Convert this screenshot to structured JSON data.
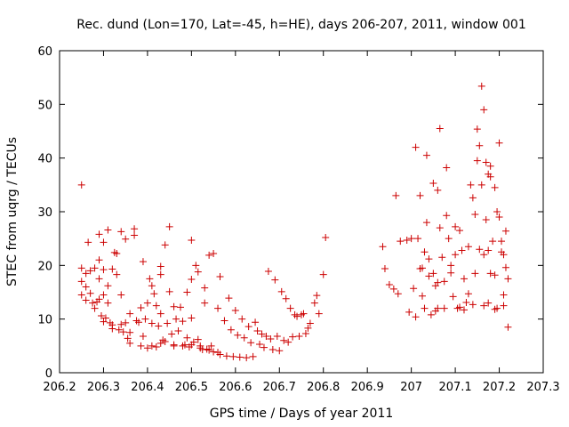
{
  "chart_data": {
    "type": "scatter",
    "title": "Rec. dund (Lon=170, Lat=-45, h=HE), days 206-207, 2011, window 001",
    "xlabel": "GPS time / Days of year 2011",
    "ylabel": "STEC from uqrg / TECUs",
    "xlim": [
      206.2,
      207.3
    ],
    "ylim": [
      0,
      60
    ],
    "xticks": [
      206.2,
      206.3,
      206.4,
      206.5,
      206.6,
      206.7,
      206.8,
      206.9,
      207,
      207.1,
      207.2,
      207.3
    ],
    "xtick_labels": [
      "206.2",
      "206.3",
      "206.4",
      "206.5",
      "206.6",
      "206.7",
      "206.8",
      "206.9",
      "207",
      "207.1",
      "207.2",
      "207.3"
    ],
    "yticks": [
      0,
      10,
      20,
      30,
      40,
      50,
      60
    ],
    "ytick_labels": [
      "0",
      "10",
      "20",
      "30",
      "40",
      "50",
      "60"
    ],
    "grid": false,
    "marker": "plus",
    "color": "#cc0000",
    "series": [
      {
        "name": "",
        "points": [
          [
            206.25,
            35.0
          ],
          [
            206.25,
            19.5
          ],
          [
            206.25,
            17.0
          ],
          [
            206.25,
            14.5
          ],
          [
            206.26,
            18.5
          ],
          [
            206.26,
            16.0
          ],
          [
            206.26,
            13.5
          ],
          [
            206.265,
            24.3
          ],
          [
            206.27,
            19.0
          ],
          [
            206.27,
            14.8
          ],
          [
            206.275,
            13.0
          ],
          [
            206.28,
            19.5
          ],
          [
            206.28,
            12.0
          ],
          [
            206.285,
            13.2
          ],
          [
            206.29,
            25.8
          ],
          [
            206.29,
            21.0
          ],
          [
            206.29,
            17.5
          ],
          [
            206.29,
            13.7
          ],
          [
            206.295,
            10.6
          ],
          [
            206.3,
            24.3
          ],
          [
            206.3,
            19.2
          ],
          [
            206.3,
            14.5
          ],
          [
            206.305,
            10.2
          ],
          [
            206.31,
            26.6
          ],
          [
            206.31,
            16.2
          ],
          [
            206.31,
            13.0
          ],
          [
            206.315,
            9.3
          ],
          [
            206.32,
            19.3
          ],
          [
            206.32,
            8.9
          ],
          [
            206.325,
            22.4
          ],
          [
            206.33,
            22.2
          ],
          [
            206.33,
            18.3
          ],
          [
            206.335,
            8.0
          ],
          [
            206.34,
            26.3
          ],
          [
            206.34,
            14.5
          ],
          [
            206.345,
            7.6
          ],
          [
            206.35,
            24.9
          ],
          [
            206.35,
            9.3
          ],
          [
            206.355,
            6.4
          ],
          [
            206.36,
            11.0
          ],
          [
            206.36,
            5.5
          ],
          [
            206.37,
            26.8
          ],
          [
            206.37,
            25.6
          ],
          [
            206.375,
            9.7
          ],
          [
            206.38,
            9.4
          ],
          [
            206.385,
            12.1
          ],
          [
            206.385,
            5.0
          ],
          [
            206.39,
            20.7
          ],
          [
            206.39,
            6.8
          ],
          [
            206.395,
            10.0
          ],
          [
            206.4,
            13.0
          ],
          [
            206.4,
            4.6
          ],
          [
            206.405,
            17.5
          ],
          [
            206.41,
            16.2
          ],
          [
            206.41,
            9.2
          ],
          [
            206.415,
            14.7
          ],
          [
            206.42,
            12.5
          ],
          [
            206.42,
            4.8
          ],
          [
            206.425,
            8.7
          ],
          [
            206.43,
            19.8
          ],
          [
            206.43,
            18.3
          ],
          [
            206.43,
            11.0
          ],
          [
            206.435,
            6.1
          ],
          [
            206.44,
            23.8
          ],
          [
            206.44,
            5.8
          ],
          [
            206.445,
            9.2
          ],
          [
            206.45,
            27.2
          ],
          [
            206.45,
            15.1
          ],
          [
            206.455,
            7.2
          ],
          [
            206.46,
            12.3
          ],
          [
            206.46,
            5.0
          ],
          [
            206.465,
            10.0
          ],
          [
            206.47,
            7.8
          ],
          [
            206.475,
            12.2
          ],
          [
            206.48,
            9.6
          ],
          [
            206.485,
            5.2
          ],
          [
            206.49,
            15.0
          ],
          [
            206.49,
            6.5
          ],
          [
            206.495,
            4.8
          ],
          [
            206.5,
            24.7
          ],
          [
            206.5,
            17.4
          ],
          [
            206.5,
            10.2
          ],
          [
            206.505,
            5.7
          ],
          [
            206.51,
            20.0
          ],
          [
            206.515,
            18.8
          ],
          [
            206.515,
            6.2
          ],
          [
            206.52,
            4.6
          ],
          [
            206.525,
            4.3
          ],
          [
            206.53,
            15.8
          ],
          [
            206.53,
            13.0
          ],
          [
            206.535,
            4.4
          ],
          [
            206.54,
            21.9
          ],
          [
            206.545,
            5.0
          ],
          [
            206.55,
            22.2
          ],
          [
            206.55,
            3.9
          ],
          [
            206.56,
            12.0
          ],
          [
            206.565,
            17.9
          ],
          [
            206.565,
            3.4
          ],
          [
            206.575,
            9.7
          ],
          [
            206.58,
            3.1
          ],
          [
            206.585,
            13.9
          ],
          [
            206.59,
            8.0
          ],
          [
            206.595,
            3.0
          ],
          [
            206.6,
            11.6
          ],
          [
            206.605,
            7.0
          ],
          [
            206.61,
            2.9
          ],
          [
            206.615,
            10.0
          ],
          [
            206.62,
            6.5
          ],
          [
            206.625,
            2.8
          ],
          [
            206.63,
            8.6
          ],
          [
            206.635,
            5.6
          ],
          [
            206.64,
            3.0
          ],
          [
            206.645,
            9.4
          ],
          [
            206.65,
            7.8
          ],
          [
            206.655,
            5.3
          ],
          [
            206.66,
            7.2
          ],
          [
            206.665,
            4.7
          ],
          [
            206.67,
            6.8
          ],
          [
            206.675,
            18.9
          ],
          [
            206.68,
            6.3
          ],
          [
            206.685,
            4.3
          ],
          [
            206.69,
            17.3
          ],
          [
            206.695,
            6.8
          ],
          [
            206.7,
            4.1
          ],
          [
            206.705,
            15.1
          ],
          [
            206.71,
            6.0
          ],
          [
            206.715,
            13.8
          ],
          [
            206.72,
            5.7
          ],
          [
            206.725,
            12.0
          ],
          [
            206.73,
            6.7
          ],
          [
            206.735,
            10.8
          ],
          [
            206.74,
            10.5
          ],
          [
            206.745,
            6.8
          ],
          [
            206.75,
            10.8
          ],
          [
            206.755,
            11.0
          ],
          [
            206.76,
            7.3
          ],
          [
            206.765,
            8.3
          ],
          [
            206.77,
            9.2
          ],
          [
            206.78,
            13.0
          ],
          [
            206.785,
            14.4
          ],
          [
            206.79,
            11.0
          ],
          [
            206.8,
            18.3
          ],
          [
            206.805,
            25.2
          ],
          [
            206.935,
            23.5
          ],
          [
            206.94,
            19.4
          ],
          [
            206.95,
            16.4
          ],
          [
            206.96,
            15.6
          ],
          [
            206.965,
            33.0
          ],
          [
            206.97,
            14.7
          ],
          [
            206.975,
            24.5
          ],
          [
            206.99,
            24.7
          ],
          [
            206.995,
            11.3
          ],
          [
            207.0,
            25.0
          ],
          [
            207.005,
            15.7
          ],
          [
            207.01,
            42.0
          ],
          [
            207.01,
            10.4
          ],
          [
            207.015,
            25.0
          ],
          [
            207.02,
            33.0
          ],
          [
            207.02,
            19.4
          ],
          [
            207.025,
            14.3
          ],
          [
            207.03,
            22.5
          ],
          [
            207.03,
            12.0
          ],
          [
            207.035,
            40.5
          ],
          [
            207.035,
            28.0
          ],
          [
            207.04,
            21.2
          ],
          [
            207.045,
            10.8
          ],
          [
            207.05,
            35.3
          ],
          [
            207.05,
            18.5
          ],
          [
            207.055,
            16.2
          ],
          [
            207.06,
            34.0
          ],
          [
            207.06,
            12.0
          ],
          [
            207.065,
            45.5
          ],
          [
            207.065,
            27.0
          ],
          [
            207.07,
            21.5
          ],
          [
            207.075,
            17.0
          ],
          [
            207.075,
            12.0
          ],
          [
            207.08,
            38.2
          ],
          [
            207.08,
            29.3
          ],
          [
            207.085,
            25.0
          ],
          [
            207.09,
            20.0
          ],
          [
            207.09,
            18.6
          ],
          [
            207.095,
            14.2
          ],
          [
            207.1,
            27.2
          ],
          [
            207.1,
            22.0
          ],
          [
            207.105,
            12.0
          ],
          [
            207.11,
            26.5
          ],
          [
            207.115,
            22.8
          ],
          [
            207.12,
            17.5
          ],
          [
            207.125,
            13.1
          ],
          [
            207.13,
            23.5
          ],
          [
            207.13,
            14.7
          ],
          [
            207.135,
            35.0
          ],
          [
            207.14,
            32.6
          ],
          [
            207.145,
            29.5
          ],
          [
            207.15,
            45.4
          ],
          [
            207.15,
            39.5
          ],
          [
            207.155,
            42.3
          ],
          [
            207.155,
            23.0
          ],
          [
            207.16,
            53.4
          ],
          [
            207.16,
            35.0
          ],
          [
            207.165,
            49.0
          ],
          [
            207.165,
            22.0
          ],
          [
            207.17,
            39.2
          ],
          [
            207.17,
            28.5
          ],
          [
            207.175,
            22.8
          ],
          [
            207.18,
            38.5
          ],
          [
            207.18,
            18.5
          ],
          [
            207.185,
            24.5
          ],
          [
            207.19,
            34.5
          ],
          [
            207.19,
            18.2
          ],
          [
            207.195,
            12.0
          ],
          [
            207.2,
            42.8
          ],
          [
            207.2,
            29.0
          ],
          [
            207.205,
            22.5
          ],
          [
            207.21,
            14.5
          ],
          [
            207.21,
            12.5
          ],
          [
            207.215,
            26.4
          ],
          [
            207.215,
            19.6
          ],
          [
            207.22,
            17.5
          ],
          [
            207.22,
            8.5
          ],
          [
            207.145,
            18.5
          ],
          [
            207.14,
            12.7
          ],
          [
            207.12,
            11.7
          ],
          [
            207.11,
            12.2
          ],
          [
            207.06,
            16.8
          ],
          [
            207.055,
            11.5
          ],
          [
            207.04,
            18.0
          ],
          [
            207.025,
            19.5
          ],
          [
            207.165,
            12.5
          ],
          [
            207.175,
            13.0
          ],
          [
            207.19,
            11.8
          ],
          [
            207.21,
            22.0
          ],
          [
            207.205,
            24.5
          ],
          [
            207.195,
            30.0
          ],
          [
            207.18,
            36.5
          ],
          [
            207.175,
            37.0
          ],
          [
            206.43,
            5.5
          ],
          [
            206.41,
            5.0
          ],
          [
            206.46,
            5.2
          ],
          [
            206.48,
            5.0
          ],
          [
            206.5,
            5.2
          ],
          [
            206.52,
            5.0
          ],
          [
            206.54,
            4.2
          ],
          [
            206.56,
            3.8
          ],
          [
            206.34,
            9.0
          ],
          [
            206.32,
            8.2
          ],
          [
            206.36,
            7.5
          ],
          [
            206.3,
            9.5
          ]
        ]
      }
    ]
  }
}
